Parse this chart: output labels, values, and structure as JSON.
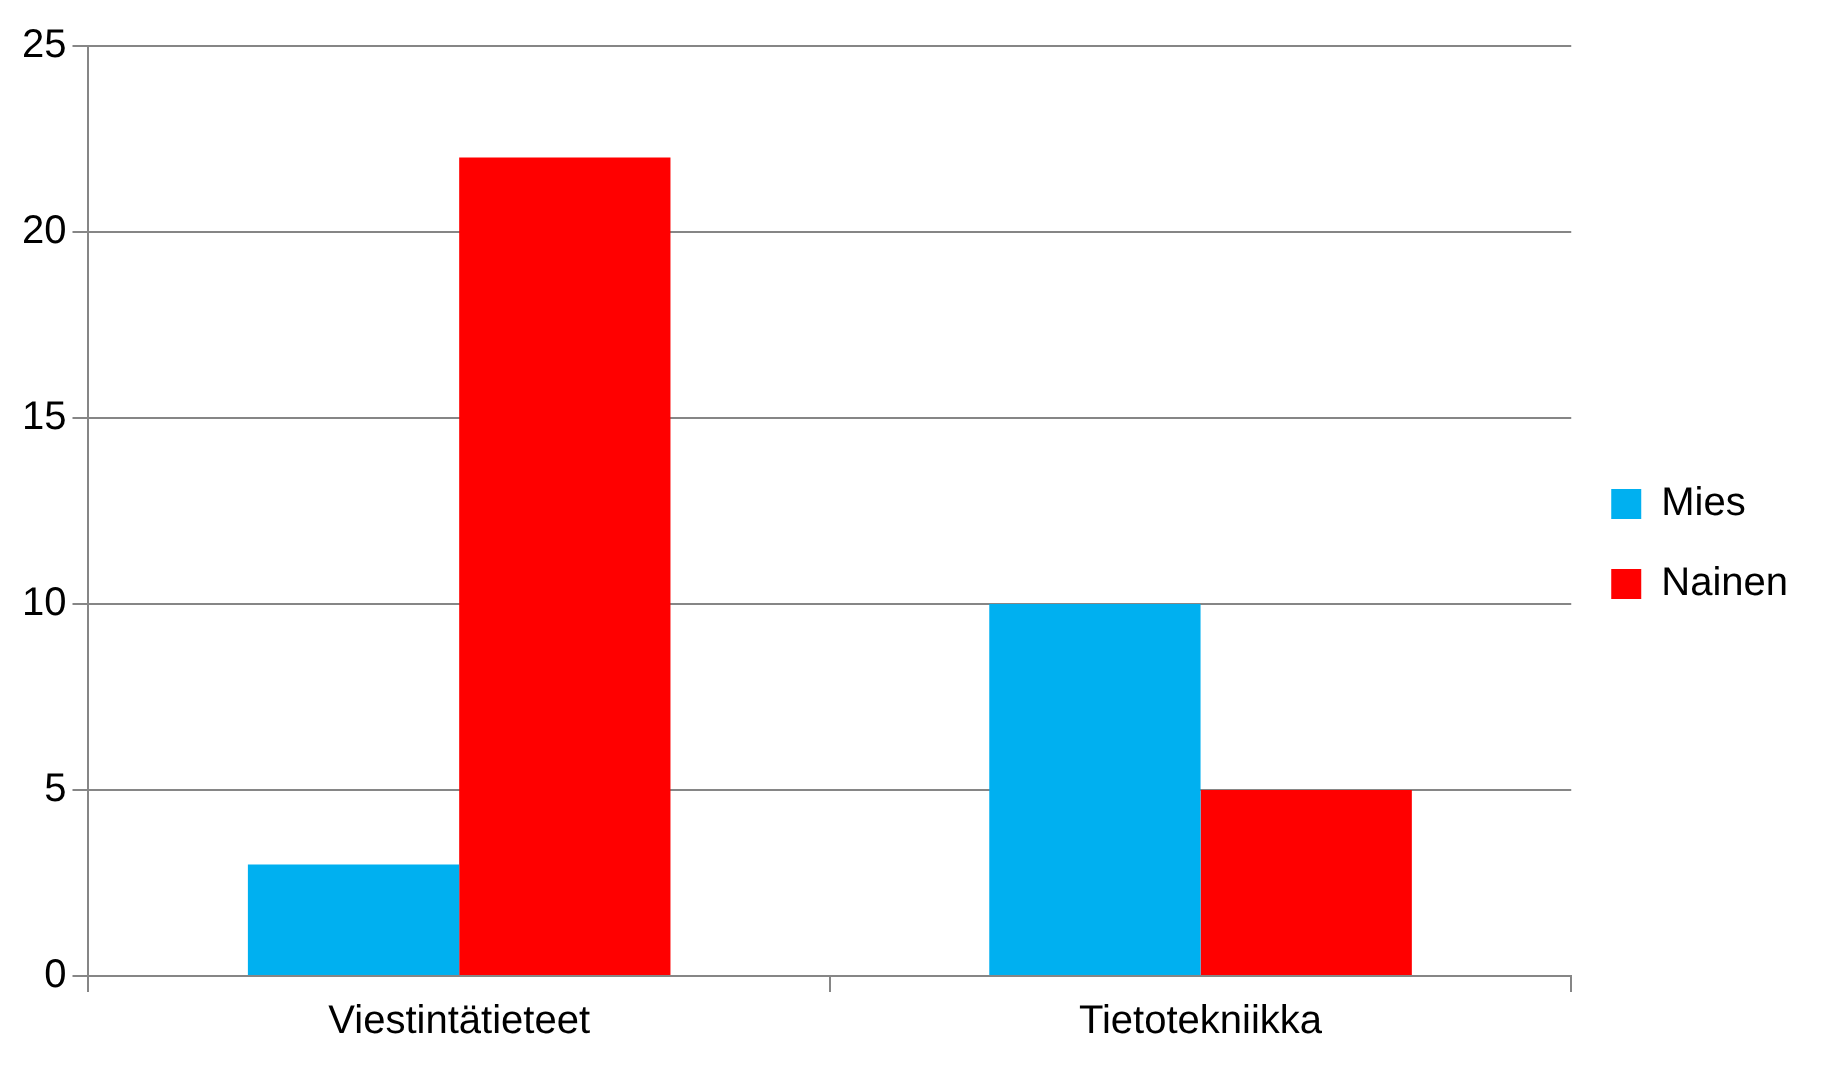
{
  "chart_data": {
    "type": "bar",
    "categories": [
      "Viestintätieteet",
      "Tietotekniikka"
    ],
    "series": [
      {
        "name": "Mies",
        "color": "#00b0f0",
        "values": [
          3,
          10
        ]
      },
      {
        "name": "Nainen",
        "color": "#ff0000",
        "values": [
          22,
          5
        ]
      }
    ],
    "ylim": [
      0,
      25
    ],
    "yticks": [
      0,
      5,
      10,
      15,
      20,
      25
    ],
    "grid": "y",
    "legend": "right"
  }
}
